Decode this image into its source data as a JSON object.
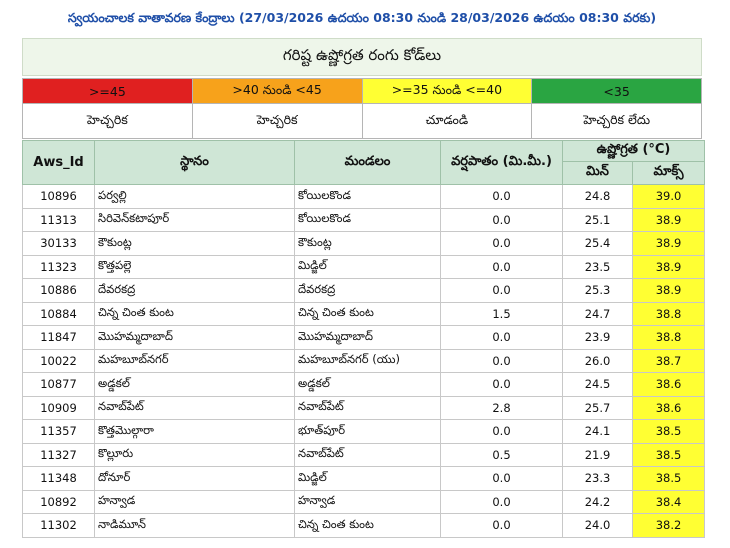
{
  "header": {
    "title": "స్వయంచాలక వాతావరణ కేంద్రాలు (27/03/2026 ఉదయం 08:30 నుండి 28/03/2026 ఉదయం 08:30 వరకు)"
  },
  "subtitle": "గరిష్ట ఉష్ణోగ్రత రంగు కోడ్‌లు",
  "legend": [
    {
      "range": ">=45",
      "label": "హెచ్చరిక",
      "color": "#e02020"
    },
    {
      "range": ">40 నుండి <45",
      "label": "హెచ్చరిక",
      "color": "#f7a21b"
    },
    {
      "range": ">=35 నుండి <=40",
      "label": "చూడండి",
      "color": "#ffff33"
    },
    {
      "range": "<35",
      "label": "హెచ్చరిక లేదు",
      "color": "#2aa542"
    }
  ],
  "table": {
    "headers": {
      "id": "Aws_Id",
      "place": "స్థానం",
      "mandal": "మండలం",
      "rain": "వర్షపాతం (మి.మీ.)",
      "temp": "ఉష్ణోగ్రత (°C)",
      "min": "మిన్",
      "max": "మాక్స్"
    },
    "rows": [
      {
        "id": "10896",
        "place": "పర్వల్లి",
        "mandal": "కోయిలకొండ",
        "rain": "0.0",
        "min": "24.8",
        "max": "39.0"
      },
      {
        "id": "11313",
        "place": "సిరివెన్‌కటాపూర్",
        "mandal": "కోయిలకొండ",
        "rain": "0.0",
        "min": "25.1",
        "max": "38.9"
      },
      {
        "id": "30133",
        "place": "కౌకుంట్ల",
        "mandal": "కౌకుంట్ల",
        "rain": "0.0",
        "min": "25.4",
        "max": "38.9"
      },
      {
        "id": "11323",
        "place": "కొత్తపల్లె",
        "mandal": "మిడ్జిల్",
        "rain": "0.0",
        "min": "23.5",
        "max": "38.9"
      },
      {
        "id": "10886",
        "place": "దేవరకద్ర",
        "mandal": "దేవరకద్ర",
        "rain": "0.0",
        "min": "25.3",
        "max": "38.9"
      },
      {
        "id": "10884",
        "place": "చిన్న చింత కుంట",
        "mandal": "చిన్న చింత కుంట",
        "rain": "1.5",
        "min": "24.7",
        "max": "38.8"
      },
      {
        "id": "11847",
        "place": "మొహమ్మదాబాద్",
        "mandal": "మొహమ్మదాబాద్",
        "rain": "0.0",
        "min": "23.9",
        "max": "38.8"
      },
      {
        "id": "10022",
        "place": "మహబూబ్‌నగర్",
        "mandal": "మహబూబ్‌నగర్ (యు)",
        "rain": "0.0",
        "min": "26.0",
        "max": "38.7"
      },
      {
        "id": "10877",
        "place": "అడ్డకల్",
        "mandal": "అడ్డకల్",
        "rain": "0.0",
        "min": "24.5",
        "max": "38.6"
      },
      {
        "id": "10909",
        "place": "నవాబ్‌పేట్",
        "mandal": "నవాబ్‌పేట్",
        "rain": "2.8",
        "min": "25.7",
        "max": "38.6"
      },
      {
        "id": "11357",
        "place": "కొత్తమొల్గారా",
        "mandal": "భూత్‌పూర్",
        "rain": "0.0",
        "min": "24.1",
        "max": "38.5"
      },
      {
        "id": "11327",
        "place": "కొల్లూరు",
        "mandal": "నవాబ్‌పేట్",
        "rain": "0.5",
        "min": "21.9",
        "max": "38.5"
      },
      {
        "id": "11348",
        "place": "దోనూర్",
        "mandal": "మిడ్జిల్",
        "rain": "0.0",
        "min": "23.3",
        "max": "38.5"
      },
      {
        "id": "10892",
        "place": "హన్వాడ",
        "mandal": "హన్వాడ",
        "rain": "0.0",
        "min": "24.2",
        "max": "38.4"
      },
      {
        "id": "11302",
        "place": "నాడిమూన్",
        "mandal": "చిన్న చింత కుంట",
        "rain": "0.0",
        "min": "24.0",
        "max": "38.2"
      }
    ]
  }
}
